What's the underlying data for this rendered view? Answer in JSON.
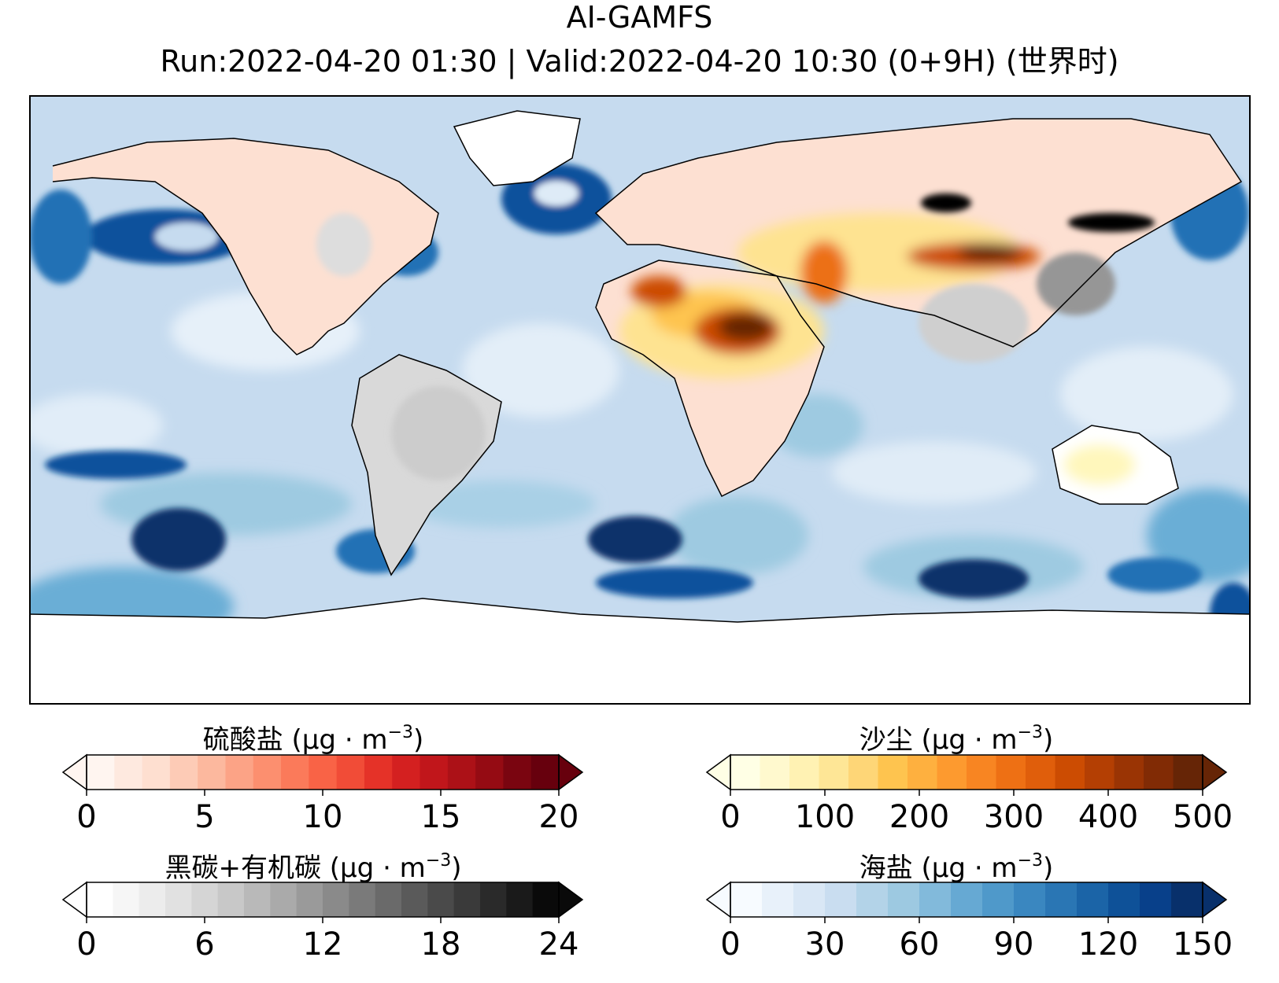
{
  "title": "AI-GAMFS",
  "subtitle": "Run:2022-04-20 01:30 | Valid:2022-04-20 10:30 (0+9H) (世界时)",
  "colorbars": {
    "sulfate": {
      "name": "硫酸盐",
      "unit_base": "(μg · m",
      "unit_exp": "−3",
      "unit_end": ")",
      "ticks": [
        "0",
        "5",
        "10",
        "15",
        "20"
      ],
      "colors": [
        "#fff5f0",
        "#fee9df",
        "#fedfd0",
        "#fdcbb6",
        "#fcb89e",
        "#fca386",
        "#fc8f6f",
        "#fb7a5a",
        "#f96346",
        "#f14c37",
        "#e53228",
        "#d42020",
        "#c1161b",
        "#ac1117",
        "#950b13",
        "#7a0510",
        "#67000d"
      ]
    },
    "dust": {
      "name": "沙尘",
      "unit_base": "(μg · m",
      "unit_exp": "−3",
      "unit_end": ")",
      "ticks": [
        "0",
        "100",
        "200",
        "300",
        "400",
        "500"
      ],
      "colors": [
        "#ffffe5",
        "#fff9ce",
        "#fff2b3",
        "#fee696",
        "#fed677",
        "#fec44f",
        "#feb03f",
        "#fd9a2f",
        "#f88522",
        "#ee7014",
        "#e05e0b",
        "#cc4c02",
        "#b43f03",
        "#9a3404",
        "#812b05",
        "#662506"
      ]
    },
    "bc_oc": {
      "name": "黑碳+有机碳",
      "unit_base": "(μg · m",
      "unit_exp": "−3",
      "unit_end": ")",
      "ticks": [
        "0",
        "6",
        "12",
        "18",
        "24"
      ],
      "colors": [
        "#ffffff",
        "#f6f6f6",
        "#ececec",
        "#e1e1e1",
        "#d5d5d5",
        "#c8c8c8",
        "#b9b9b9",
        "#aaaaaa",
        "#9a9a9a",
        "#8a8a8a",
        "#7a7a7a",
        "#6a6a6a",
        "#5a5a5a",
        "#4a4a4a",
        "#3a3a3a",
        "#2a2a2a",
        "#1a1a1a",
        "#0a0a0a"
      ]
    },
    "seasalt": {
      "name": "海盐",
      "unit_base": "(μg · m",
      "unit_exp": "−3",
      "unit_end": ")",
      "ticks": [
        "0",
        "30",
        "60",
        "90",
        "120",
        "150"
      ],
      "colors": [
        "#f7fbff",
        "#e8f1fa",
        "#d9e7f5",
        "#c9ddf0",
        "#b3d3e8",
        "#9dc9e1",
        "#82badb",
        "#66a9d3",
        "#4f99ca",
        "#3a87c0",
        "#2a76b4",
        "#1b64a7",
        "#0e5198",
        "#08408a",
        "#08306b"
      ]
    }
  },
  "icon_names": [
    "colorbar-arrow-icon"
  ]
}
